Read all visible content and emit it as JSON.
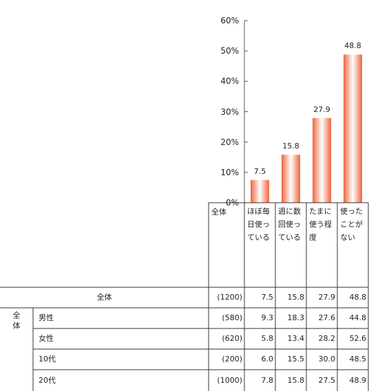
{
  "chart_data": {
    "type": "bar",
    "categories": [
      "ほぼ毎日使っている",
      "週に数回使っている",
      "たまに使う程度",
      "使ったことがない"
    ],
    "values": [
      7.5,
      15.8,
      27.9,
      48.8
    ],
    "color": "#f0643c",
    "ylim": [
      0,
      60
    ],
    "yticks": [
      {
        "value": 0,
        "label": "0%"
      },
      {
        "value": 10,
        "label": "10%"
      },
      {
        "value": 20,
        "label": "20%"
      },
      {
        "value": 30,
        "label": "30%"
      },
      {
        "value": 40,
        "label": "40%"
      },
      {
        "value": 50,
        "label": "50%"
      },
      {
        "value": 60,
        "label": "60%"
      }
    ],
    "grid": false
  },
  "table": {
    "n_header": "全体",
    "group": "全体",
    "rows": [
      {
        "label": "全体",
        "cells": [
          "(1200)",
          "7.5",
          "15.8",
          "27.9",
          "48.8"
        ]
      },
      {
        "label": "男性",
        "cells": [
          "(580)",
          "9.3",
          "18.3",
          "27.6",
          "44.8"
        ]
      },
      {
        "label": "女性",
        "cells": [
          "(620)",
          "5.8",
          "13.4",
          "28.2",
          "52.6"
        ]
      },
      {
        "label": "10代",
        "cells": [
          "(200)",
          "6.0",
          "15.5",
          "30.0",
          "48.5"
        ]
      },
      {
        "label": "20代",
        "cells": [
          "(1000)",
          "7.8",
          "15.8",
          "27.5",
          "48.9"
        ]
      }
    ]
  }
}
